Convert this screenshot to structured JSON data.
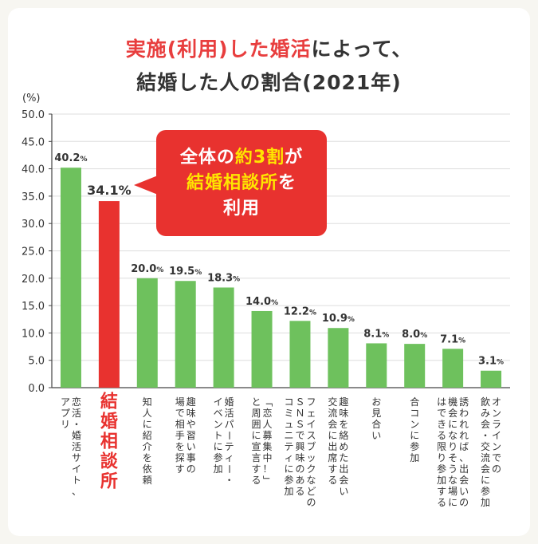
{
  "title": {
    "line1_highlight": "実施(利用)した婚活",
    "line1_rest": "によって、",
    "line2": "結婚した人の割合(2021年)"
  },
  "y_unit": "(%)",
  "callout": {
    "line1_a": "全体の",
    "line1_b": "約3割",
    "line1_c": "が",
    "line2_a": "結婚相談所",
    "line2_b": "を",
    "line3": "利用"
  },
  "colors": {
    "bar": "#6ec15d",
    "highlight": "#e8322f",
    "axis": "#444444",
    "grid": "#dddddd",
    "text": "#333333"
  },
  "chart_data": {
    "type": "bar",
    "title": "実施(利用)した婚活によって、結婚した人の割合(2021年)",
    "ylabel": "(%)",
    "ylim": [
      0,
      50
    ],
    "yticks": [
      "0.0",
      "5.0",
      "10.0",
      "15.0",
      "20.0",
      "25.0",
      "30.0",
      "35.0",
      "40.0",
      "45.0",
      "50.0"
    ],
    "highlight_index": 1,
    "categories": [
      [
        "恋活・婚活サイト、",
        "アプリ"
      ],
      [
        "結婚相談所"
      ],
      [
        "知人に紹介を依頼"
      ],
      [
        "趣味や習い事の",
        "場で相手を探す"
      ],
      [
        "婚活パーティー・",
        "イベントに参加"
      ],
      [
        "「恋人募集中！」",
        "と周囲に宣言する"
      ],
      [
        "フェイスブックなどの",
        "ＳＮＳで興味のある",
        "コミュニティに参加"
      ],
      [
        "趣味を絡めた出会い",
        "交流会に出席する"
      ],
      [
        "お見合い"
      ],
      [
        "合コンに参加"
      ],
      [
        "誘われれば、出会いの",
        "機会になりそうな場に",
        "はできる限り参加する"
      ],
      [
        "オンラインでの",
        "飲み会・交流会に参加"
      ]
    ],
    "values": [
      40.2,
      34.1,
      20.0,
      19.5,
      18.3,
      14.0,
      12.2,
      10.9,
      8.1,
      8.0,
      7.1,
      3.1
    ],
    "labels": [
      "40.2%",
      "34.1%",
      "20.0%",
      "19.5%",
      "18.3%",
      "14.0%",
      "12.2%",
      "10.9%",
      "8.1%",
      "8.0%",
      "7.1%",
      "3.1%"
    ]
  }
}
